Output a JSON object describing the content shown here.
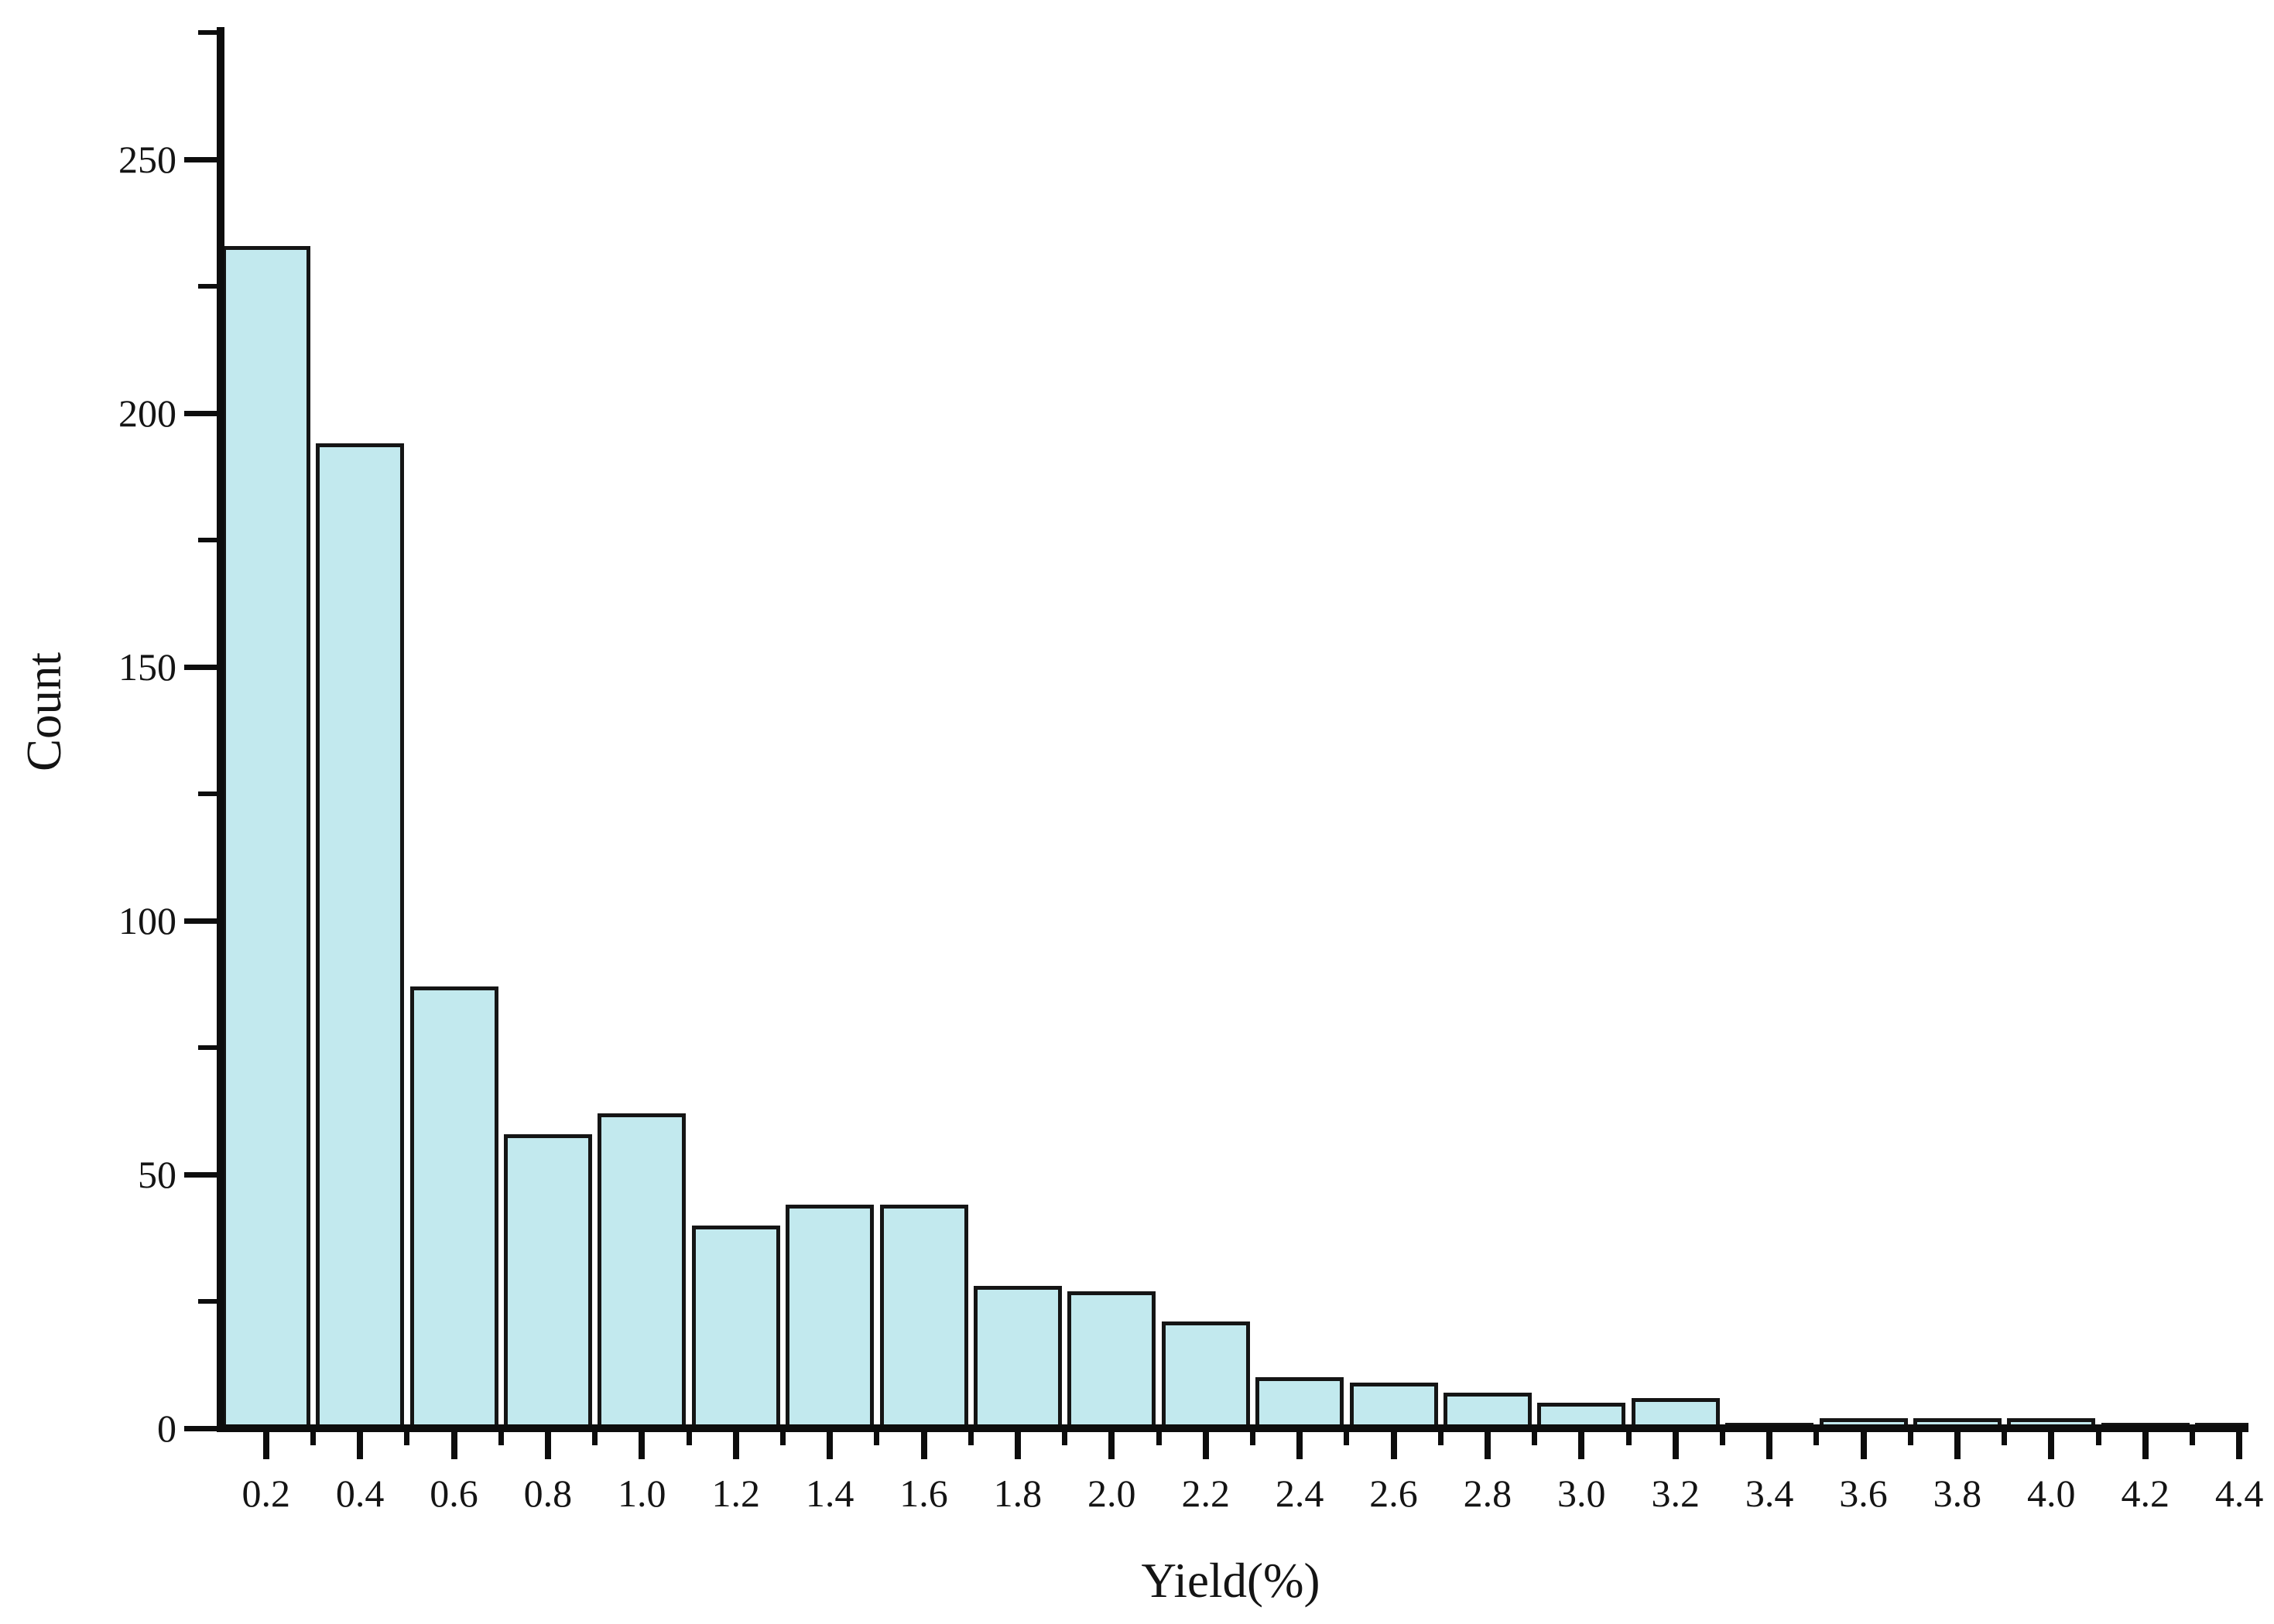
{
  "chart_data": {
    "type": "bar",
    "subtype": "histogram",
    "title": "",
    "xlabel": "Yield(%)",
    "ylabel": "Count",
    "categories": [
      "0.2",
      "0.4",
      "0.6",
      "0.8",
      "1.0",
      "1.2",
      "1.4",
      "1.6",
      "1.8",
      "2.0",
      "2.2",
      "2.4",
      "2.6",
      "2.8",
      "3.0",
      "3.2",
      "3.4",
      "3.6",
      "3.8",
      "4.0",
      "4.2",
      "4.4"
    ],
    "values": [
      233,
      194,
      87,
      58,
      62,
      40,
      44,
      44,
      28,
      27,
      21,
      10,
      9,
      7,
      5,
      6,
      1,
      2,
      2,
      2,
      1,
      1
    ],
    "bin_width": 0.2,
    "y_tick_labels": [
      "0",
      "50",
      "100",
      "150",
      "200",
      "250"
    ],
    "y_ticks_major": [
      0,
      50,
      100,
      150,
      200,
      250
    ],
    "y_ticks_minor": [
      25,
      75,
      125,
      175,
      225,
      275
    ],
    "ylim": [
      0,
      276
    ],
    "xlim": [
      0.1,
      4.5
    ],
    "grid": false,
    "legend_position": "none",
    "colors": {
      "background": "#ffffff",
      "bar_fill": "#C2E9EE",
      "bar_stroke": "#151515",
      "axis": "#0d0d0d",
      "text": "#141414"
    }
  }
}
